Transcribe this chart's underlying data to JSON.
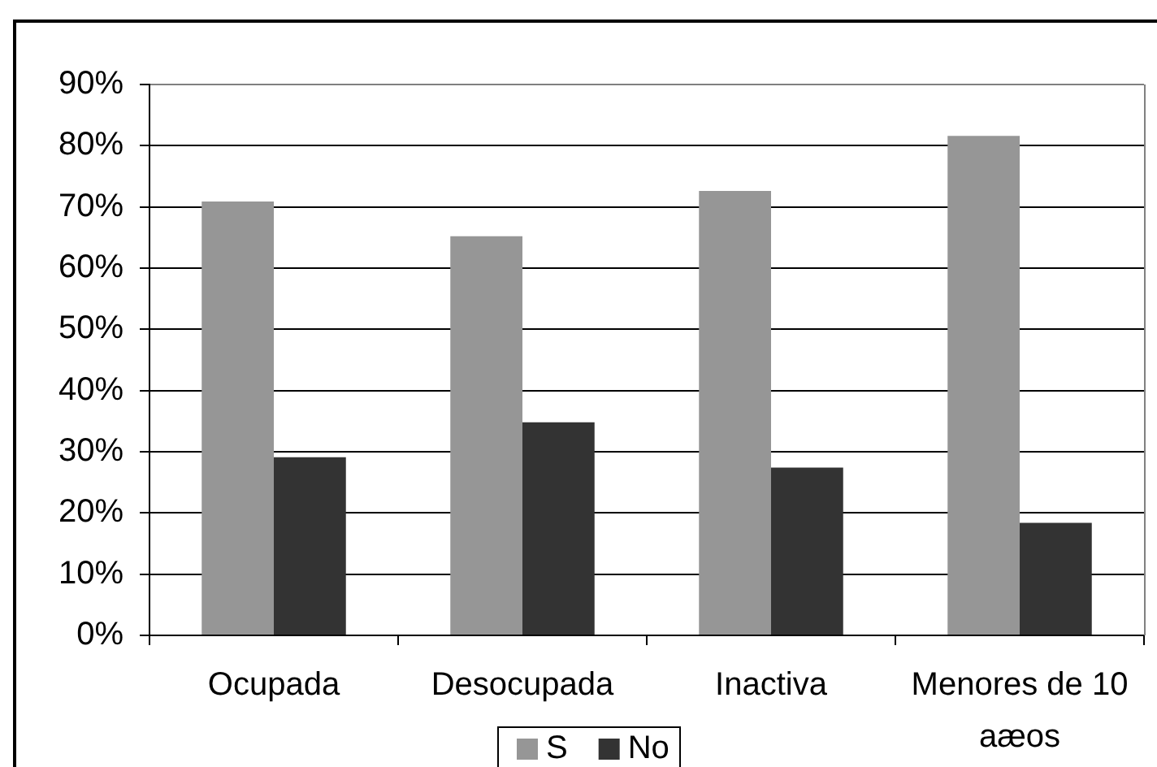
{
  "chart_data": {
    "type": "bar",
    "categories": [
      "Ocupada",
      "Desocupada",
      "Inactiva",
      "Menores de 10 aæos"
    ],
    "series": [
      {
        "name": "S",
        "color": "#969696",
        "values": [
          70.9,
          65.2,
          72.6,
          81.6
        ]
      },
      {
        "name": "No",
        "color": "#333333",
        "values": [
          29.1,
          34.8,
          27.4,
          18.4
        ]
      }
    ],
    "ylim": [
      0,
      90
    ],
    "yticks": [
      {
        "value": 0,
        "label": "0%"
      },
      {
        "value": 10,
        "label": "10%"
      },
      {
        "value": 20,
        "label": "20%"
      },
      {
        "value": 30,
        "label": "30%"
      },
      {
        "value": 40,
        "label": "40%"
      },
      {
        "value": 50,
        "label": "50%"
      },
      {
        "value": 60,
        "label": "60%"
      },
      {
        "value": 70,
        "label": "70%"
      },
      {
        "value": 80,
        "label": "80%"
      },
      {
        "value": 90,
        "label": "90%"
      }
    ],
    "grid": "y",
    "legend": "bottom"
  }
}
